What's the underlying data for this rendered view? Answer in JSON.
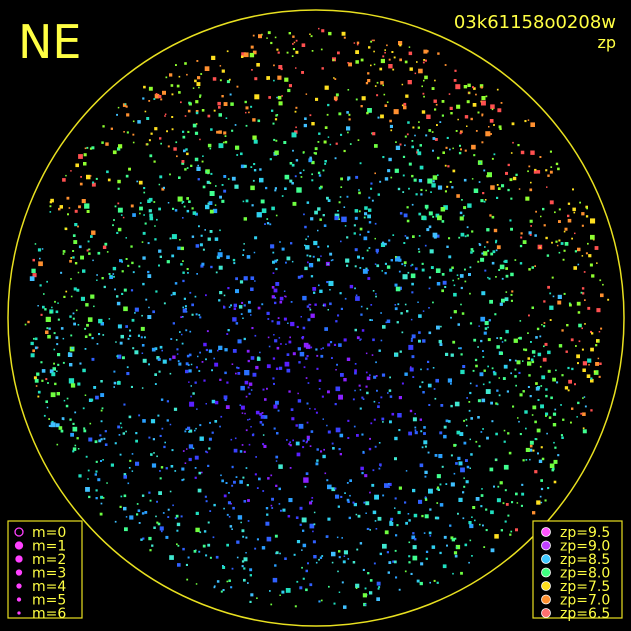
{
  "label": "NE",
  "title": "03k61158o0208w",
  "subtitle": "zp",
  "magnitude_legend": [
    "m=0",
    "m=1",
    "m=2",
    "m=3",
    "m=4",
    "m=5",
    "m=6"
  ],
  "zp_legend": [
    {
      "label": "zp=9.5",
      "color": "#ff55ff"
    },
    {
      "label": "zp=9.0",
      "color": "#c040ff"
    },
    {
      "label": "zp=8.5",
      "color": "#40c8ff"
    },
    {
      "label": "zp=8.0",
      "color": "#40ff80"
    },
    {
      "label": "zp=7.5",
      "color": "#ffe020"
    },
    {
      "label": "zp=7.0",
      "color": "#ff9030"
    },
    {
      "label": "zp=6.5",
      "color": "#ff7070"
    }
  ]
}
